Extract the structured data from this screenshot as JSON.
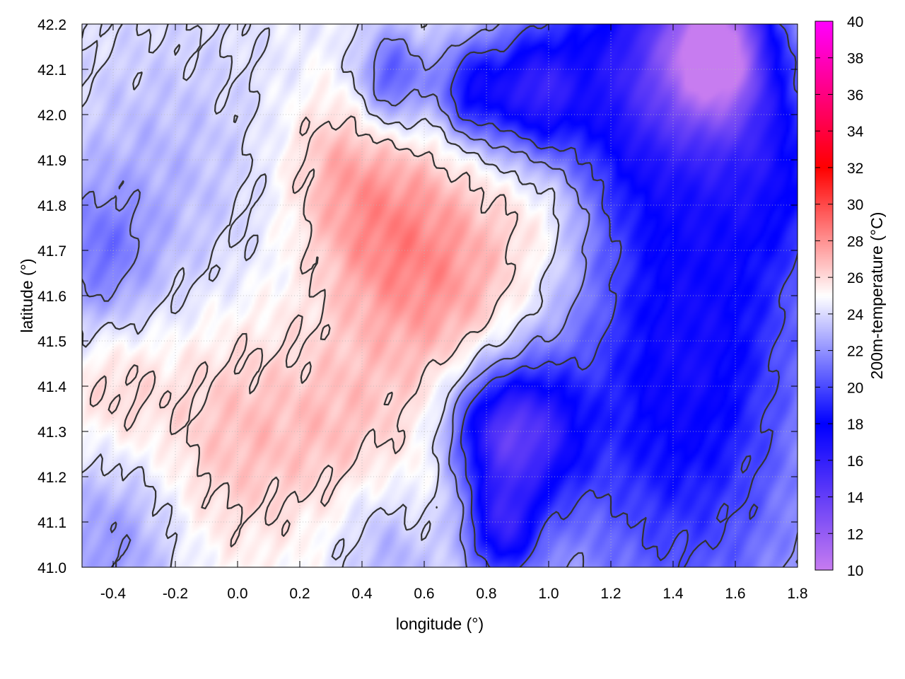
{
  "chart_data": {
    "type": "heatmap",
    "title": "",
    "xlabel": "longitude (°)",
    "ylabel": "latitude (°)",
    "colorbar_label": "200m-temperature (°C)",
    "xlim": [
      -0.5,
      1.8
    ],
    "ylim": [
      41.0,
      42.2
    ],
    "clim": [
      10,
      40
    ],
    "x_ticks": [
      "-0.4",
      "-0.2",
      "0.0",
      "0.2",
      "0.4",
      "0.6",
      "0.8",
      "1.0",
      "1.2",
      "1.4",
      "1.6",
      "1.8"
    ],
    "y_ticks": [
      "41.0",
      "41.1",
      "41.2",
      "41.3",
      "41.4",
      "41.5",
      "41.6",
      "41.7",
      "41.8",
      "41.9",
      "42.0",
      "42.1",
      "42.2"
    ],
    "colorbar_ticks": [
      "10",
      "12",
      "14",
      "16",
      "18",
      "20",
      "22",
      "24",
      "26",
      "28",
      "30",
      "32",
      "34",
      "36",
      "38",
      "40"
    ],
    "grid": true,
    "colormap": [
      {
        "value": 10,
        "color": "#c77cf0"
      },
      {
        "value": 18,
        "color": "#0000ff"
      },
      {
        "value": 25,
        "color": "#ffffff"
      },
      {
        "value": 32,
        "color": "#ff0000"
      },
      {
        "value": 40,
        "color": "#ff00ff"
      }
    ],
    "contour_color": "#333333",
    "features": [
      {
        "lon": 0.7,
        "lat": 41.62,
        "temp": 27.5,
        "spread": 0.22
      },
      {
        "lon": 0.45,
        "lat": 41.75,
        "temp": 26.8,
        "spread": 0.16
      },
      {
        "lon": 0.3,
        "lat": 41.9,
        "temp": 26.0,
        "spread": 0.12
      },
      {
        "lon": 0.0,
        "lat": 41.3,
        "temp": 26.8,
        "spread": 0.2
      },
      {
        "lon": -0.4,
        "lat": 41.4,
        "temp": 26.3,
        "spread": 0.12
      },
      {
        "lon": 0.35,
        "lat": 41.3,
        "temp": 26.0,
        "spread": 0.14
      },
      {
        "lon": 0.6,
        "lat": 41.15,
        "temp": 25.5,
        "spread": 0.1
      },
      {
        "lon": 1.0,
        "lat": 41.8,
        "temp": 25.8,
        "spread": 0.1
      },
      {
        "lon": 1.55,
        "lat": 42.15,
        "temp": 13.0,
        "spread": 0.12
      },
      {
        "lon": 1.3,
        "lat": 42.1,
        "temp": 16.5,
        "spread": 0.22
      },
      {
        "lon": 0.95,
        "lat": 42.05,
        "temp": 18.0,
        "spread": 0.1
      },
      {
        "lon": 0.75,
        "lat": 42.05,
        "temp": 18.5,
        "spread": 0.08
      },
      {
        "lon": 0.5,
        "lat": 42.08,
        "temp": 20.0,
        "spread": 0.08
      },
      {
        "lon": 0.95,
        "lat": 41.3,
        "temp": 17.5,
        "spread": 0.12
      },
      {
        "lon": 0.8,
        "lat": 41.3,
        "temp": 19.0,
        "spread": 0.1
      },
      {
        "lon": 0.85,
        "lat": 41.08,
        "temp": 18.0,
        "spread": 0.08
      },
      {
        "lon": 1.4,
        "lat": 41.45,
        "temp": 20.5,
        "spread": 0.25
      },
      {
        "lon": 1.45,
        "lat": 41.1,
        "temp": 21.0,
        "spread": 0.35
      },
      {
        "lon": 1.6,
        "lat": 41.75,
        "temp": 21.5,
        "spread": 0.25
      },
      {
        "lon": 1.75,
        "lat": 41.9,
        "temp": 21.0,
        "spread": 0.15
      },
      {
        "lon": -0.25,
        "lat": 41.85,
        "temp": 23.0,
        "spread": 0.25
      },
      {
        "lon": -0.45,
        "lat": 41.68,
        "temp": 21.8,
        "spread": 0.12
      },
      {
        "lon": -0.4,
        "lat": 41.05,
        "temp": 22.0,
        "spread": 0.15
      },
      {
        "lon": 0.5,
        "lat": 41.05,
        "temp": 22.5,
        "spread": 0.12
      }
    ]
  }
}
